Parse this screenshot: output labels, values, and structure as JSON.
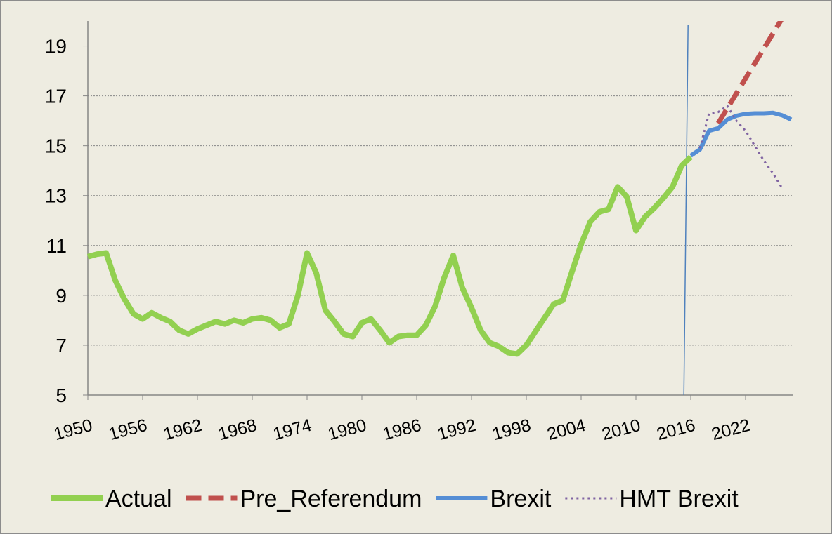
{
  "chart_data": {
    "type": "line",
    "x": [
      1950,
      1951,
      1952,
      1953,
      1954,
      1955,
      1956,
      1957,
      1958,
      1959,
      1960,
      1961,
      1962,
      1963,
      1964,
      1965,
      1966,
      1967,
      1968,
      1969,
      1970,
      1971,
      1972,
      1973,
      1974,
      1975,
      1976,
      1977,
      1978,
      1979,
      1980,
      1981,
      1982,
      1983,
      1984,
      1985,
      1986,
      1987,
      1988,
      1989,
      1990,
      1991,
      1992,
      1993,
      1994,
      1995,
      1996,
      1997,
      1998,
      1999,
      2000,
      2001,
      2002,
      2003,
      2004,
      2005,
      2006,
      2007,
      2008,
      2009,
      2010,
      2011,
      2012,
      2013,
      2014,
      2015,
      2016,
      2017,
      2018,
      2019,
      2020,
      2021,
      2022,
      2023,
      2024,
      2025,
      2026,
      2027
    ],
    "series": [
      {
        "name": "Actual",
        "color": "#92d050",
        "style": "solid",
        "values": [
          10.55,
          10.65,
          10.7,
          9.6,
          8.85,
          8.25,
          8.05,
          8.3,
          8.1,
          7.95,
          7.6,
          7.45,
          7.65,
          7.8,
          7.95,
          7.85,
          8.0,
          7.9,
          8.05,
          8.1,
          8.0,
          7.7,
          7.85,
          9.0,
          10.7,
          9.9,
          8.4,
          7.95,
          7.45,
          7.35,
          7.9,
          8.05,
          7.6,
          7.1,
          7.35,
          7.4,
          7.4,
          7.8,
          8.55,
          9.7,
          10.6,
          9.3,
          8.5,
          7.6,
          7.1,
          6.95,
          6.7,
          6.65,
          7.0,
          7.55,
          8.1,
          8.65,
          8.8,
          9.95,
          11.05,
          11.95,
          12.35,
          12.45,
          13.35,
          12.95,
          11.6,
          12.15,
          12.5,
          12.9,
          13.35,
          14.2,
          14.55,
          null,
          null,
          null,
          null,
          null,
          null,
          null,
          null,
          null,
          null,
          null
        ]
      },
      {
        "name": "Pre_Referendum",
        "color": "#c0504d",
        "style": "dashed",
        "values": [
          null,
          null,
          null,
          null,
          null,
          null,
          null,
          null,
          null,
          null,
          null,
          null,
          null,
          null,
          null,
          null,
          null,
          null,
          null,
          null,
          null,
          null,
          null,
          null,
          null,
          null,
          null,
          null,
          null,
          null,
          null,
          null,
          null,
          null,
          null,
          null,
          null,
          null,
          null,
          null,
          null,
          null,
          null,
          null,
          null,
          null,
          null,
          null,
          null,
          null,
          null,
          null,
          null,
          null,
          null,
          null,
          null,
          null,
          null,
          null,
          null,
          null,
          null,
          null,
          null,
          null,
          null,
          null,
          null,
          15.9,
          16.5,
          17.1,
          17.7,
          18.3,
          18.9,
          19.5,
          20.1,
          null
        ]
      },
      {
        "name": "Brexit",
        "color": "#558ed5",
        "style": "solid",
        "values": [
          null,
          null,
          null,
          null,
          null,
          null,
          null,
          null,
          null,
          null,
          null,
          null,
          null,
          null,
          null,
          null,
          null,
          null,
          null,
          null,
          null,
          null,
          null,
          null,
          null,
          null,
          null,
          null,
          null,
          null,
          null,
          null,
          null,
          null,
          null,
          null,
          null,
          null,
          null,
          null,
          null,
          null,
          null,
          null,
          null,
          null,
          null,
          null,
          null,
          null,
          null,
          null,
          null,
          null,
          null,
          null,
          null,
          null,
          null,
          null,
          null,
          null,
          null,
          null,
          null,
          null,
          14.6,
          14.85,
          15.6,
          15.7,
          16.05,
          16.2,
          16.28,
          16.3,
          16.3,
          16.32,
          16.22,
          16.05
        ]
      },
      {
        "name": "HMT Brexit",
        "color": "#8064a2",
        "style": "dotted",
        "values": [
          null,
          null,
          null,
          null,
          null,
          null,
          null,
          null,
          null,
          null,
          null,
          null,
          null,
          null,
          null,
          null,
          null,
          null,
          null,
          null,
          null,
          null,
          null,
          null,
          null,
          null,
          null,
          null,
          null,
          null,
          null,
          null,
          null,
          null,
          null,
          null,
          null,
          null,
          null,
          null,
          null,
          null,
          null,
          null,
          null,
          null,
          null,
          null,
          null,
          null,
          null,
          null,
          null,
          null,
          null,
          null,
          null,
          null,
          null,
          null,
          null,
          null,
          null,
          null,
          null,
          null,
          null,
          14.9,
          16.3,
          16.35,
          16.6,
          16.0,
          15.6,
          15.0,
          14.4,
          13.9,
          13.3,
          null
        ]
      }
    ],
    "xlim": [
      1950,
      2027
    ],
    "xticks": [
      1950,
      1956,
      1962,
      1968,
      1974,
      1980,
      1986,
      1992,
      1998,
      2004,
      2010,
      2016,
      2022
    ],
    "ylim": [
      5,
      20
    ],
    "yticks": [
      5,
      7,
      9,
      11,
      13,
      15,
      17,
      19
    ],
    "grid": true,
    "vline": 2015.4,
    "vline_color": "#4f81bd",
    "legend": "bottom"
  }
}
